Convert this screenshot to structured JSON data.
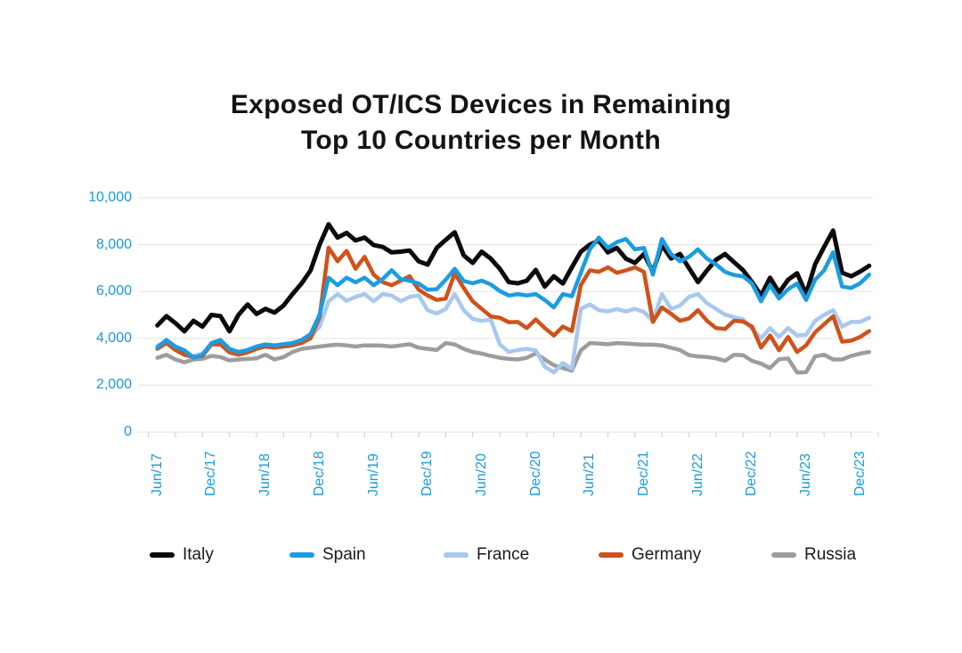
{
  "title": {
    "line1": "Exposed OT/ICS Devices in Remaining",
    "line2": "Top 10 Countries per Month"
  },
  "colors": {
    "background": "#ffffff",
    "title_text": "#141414",
    "axis_label": "#189ade",
    "gridline": "#e8e8e8",
    "tick": "#d4d4d4",
    "legend_label": "#1a1a1a"
  },
  "chart_data": {
    "type": "line",
    "title": "Exposed OT/ICS Devices in Remaining Top 10 Countries per Month",
    "xlabel": "",
    "ylabel": "",
    "ylim": [
      0,
      10000
    ],
    "grid": "horizontal",
    "legend_position": "bottom",
    "y_ticks": [
      0,
      2000,
      4000,
      6000,
      8000,
      10000
    ],
    "y_tick_labels": [
      "0",
      "2,000",
      "4,000",
      "6,000",
      "8,000",
      "10,000"
    ],
    "x_tick_labels": [
      "Jun/17",
      "Dec/17",
      "Jun/18",
      "Dec/18",
      "Jun/19",
      "Dec/19",
      "Jun/20",
      "Dec/20",
      "Jun/21",
      "Dec/21",
      "Jun/22",
      "Dec/22",
      "Jun/23",
      "Dec/23"
    ],
    "x": [
      "Jun/17",
      "Jul/17",
      "Aug/17",
      "Sep/17",
      "Oct/17",
      "Nov/17",
      "Dec/17",
      "Jan/18",
      "Feb/18",
      "Mar/18",
      "Apr/18",
      "May/18",
      "Jun/18",
      "Jul/18",
      "Aug/18",
      "Sep/18",
      "Oct/18",
      "Nov/18",
      "Dec/18",
      "Jan/19",
      "Feb/19",
      "Mar/19",
      "Apr/19",
      "May/19",
      "Jun/19",
      "Jul/19",
      "Aug/19",
      "Sep/19",
      "Oct/19",
      "Nov/19",
      "Dec/19",
      "Jan/20",
      "Feb/20",
      "Mar/20",
      "Apr/20",
      "May/20",
      "Jun/20",
      "Jul/20",
      "Aug/20",
      "Sep/20",
      "Oct/20",
      "Nov/20",
      "Dec/20",
      "Jan/21",
      "Feb/21",
      "Mar/21",
      "Apr/21",
      "May/21",
      "Jun/21",
      "Jul/21",
      "Aug/21",
      "Sep/21",
      "Oct/21",
      "Nov/21",
      "Dec/21",
      "Jan/22",
      "Feb/22",
      "Mar/22",
      "Apr/22",
      "May/22",
      "Jun/22",
      "Jul/22",
      "Aug/22",
      "Sep/22",
      "Oct/22",
      "Nov/22",
      "Dec/22",
      "Jan/23",
      "Feb/23",
      "Mar/23",
      "Apr/23",
      "May/23",
      "Jun/23",
      "Jul/23",
      "Aug/23",
      "Sep/23",
      "Oct/23",
      "Nov/23",
      "Dec/23",
      "Jan/24"
    ],
    "draw_order": [
      "Russia",
      "France",
      "Germany",
      "Italy",
      "Spain"
    ],
    "series": [
      {
        "name": "Italy",
        "color": "#0b0b0b",
        "stroke_width": 5,
        "values": [
          4550,
          4950,
          4650,
          4300,
          4750,
          4500,
          5000,
          4950,
          4300,
          5000,
          5450,
          5040,
          5260,
          5100,
          5400,
          5890,
          6340,
          6900,
          8000,
          8870,
          8300,
          8500,
          8180,
          8300,
          7980,
          7900,
          7670,
          7700,
          7750,
          7290,
          7150,
          7860,
          8200,
          8530,
          7540,
          7220,
          7700,
          7400,
          6970,
          6400,
          6350,
          6460,
          6920,
          6210,
          6650,
          6340,
          7030,
          7700,
          8000,
          8170,
          7670,
          7860,
          7400,
          7220,
          7600,
          6840,
          7980,
          7410,
          7600,
          7000,
          6400,
          6900,
          7350,
          7600,
          7250,
          6910,
          6400,
          5830,
          6590,
          5960,
          6500,
          6780,
          5890,
          7160,
          7900,
          8600,
          6800,
          6650,
          6850,
          7100
        ]
      },
      {
        "name": "Spain",
        "color": "#1b9ce3",
        "stroke_width": 4.5,
        "values": [
          3610,
          3930,
          3650,
          3490,
          3170,
          3300,
          3800,
          3930,
          3550,
          3420,
          3500,
          3650,
          3740,
          3700,
          3750,
          3800,
          3930,
          4180,
          5010,
          6590,
          6270,
          6590,
          6390,
          6590,
          6270,
          6530,
          6910,
          6530,
          6460,
          6340,
          6080,
          6100,
          6500,
          6970,
          6450,
          6350,
          6460,
          6300,
          6020,
          5830,
          5890,
          5830,
          5890,
          5640,
          5320,
          5890,
          5800,
          6800,
          7800,
          8300,
          7860,
          8110,
          8240,
          7800,
          7860,
          6720,
          8240,
          7600,
          7290,
          7480,
          7800,
          7400,
          7160,
          6840,
          6700,
          6650,
          6340,
          5580,
          6270,
          5700,
          6100,
          6340,
          5640,
          6500,
          6900,
          7670,
          6210,
          6150,
          6350,
          6720
        ]
      },
      {
        "name": "France",
        "color": "#a8c8f0",
        "stroke_width": 4.5,
        "values": [
          3700,
          3850,
          3600,
          3400,
          3250,
          3350,
          3750,
          3800,
          3500,
          3400,
          3450,
          3600,
          3650,
          3640,
          3700,
          3750,
          3800,
          4060,
          4500,
          5580,
          5890,
          5600,
          5770,
          5890,
          5580,
          5890,
          5830,
          5580,
          5770,
          5830,
          5200,
          5060,
          5260,
          5890,
          5200,
          4830,
          4750,
          4800,
          3740,
          3420,
          3500,
          3550,
          3490,
          2790,
          2550,
          2950,
          2700,
          5260,
          5450,
          5200,
          5150,
          5250,
          5150,
          5260,
          5130,
          4750,
          5890,
          5260,
          5400,
          5770,
          5890,
          5500,
          5260,
          5010,
          4900,
          4810,
          4400,
          4000,
          4440,
          4060,
          4440,
          4120,
          4150,
          4750,
          5000,
          5200,
          4500,
          4700,
          4700,
          4880
        ]
      },
      {
        "name": "Germany",
        "color": "#d0521a",
        "stroke_width": 4.5,
        "values": [
          3550,
          3800,
          3500,
          3300,
          3200,
          3250,
          3740,
          3740,
          3400,
          3300,
          3400,
          3550,
          3650,
          3600,
          3650,
          3700,
          3800,
          4000,
          4900,
          7870,
          7290,
          7730,
          6970,
          7480,
          6720,
          6400,
          6270,
          6460,
          6650,
          6080,
          5830,
          5640,
          5700,
          6780,
          6150,
          5580,
          5260,
          4940,
          4880,
          4690,
          4700,
          4440,
          4810,
          4440,
          4120,
          4500,
          4310,
          6270,
          6900,
          6840,
          7030,
          6800,
          6900,
          7030,
          6840,
          4700,
          5320,
          5050,
          4750,
          4850,
          5200,
          4750,
          4440,
          4400,
          4750,
          4720,
          4500,
          3610,
          4120,
          3490,
          4060,
          3420,
          3700,
          4260,
          4600,
          4940,
          3860,
          3900,
          4060,
          4310
        ]
      },
      {
        "name": "Russia",
        "color": "#9d9d9d",
        "stroke_width": 4.5,
        "values": [
          3170,
          3300,
          3100,
          2980,
          3100,
          3120,
          3250,
          3200,
          3060,
          3100,
          3120,
          3150,
          3300,
          3100,
          3200,
          3420,
          3550,
          3600,
          3650,
          3700,
          3730,
          3700,
          3650,
          3700,
          3700,
          3690,
          3650,
          3700,
          3750,
          3600,
          3550,
          3500,
          3800,
          3740,
          3550,
          3420,
          3350,
          3250,
          3170,
          3120,
          3100,
          3170,
          3360,
          3100,
          2850,
          2730,
          2620,
          3490,
          3800,
          3780,
          3750,
          3800,
          3780,
          3750,
          3730,
          3730,
          3700,
          3600,
          3500,
          3280,
          3230,
          3200,
          3150,
          3040,
          3300,
          3280,
          3040,
          2920,
          2730,
          3110,
          3140,
          2540,
          2560,
          3230,
          3300,
          3100,
          3100,
          3250,
          3350,
          3420
        ]
      }
    ]
  }
}
